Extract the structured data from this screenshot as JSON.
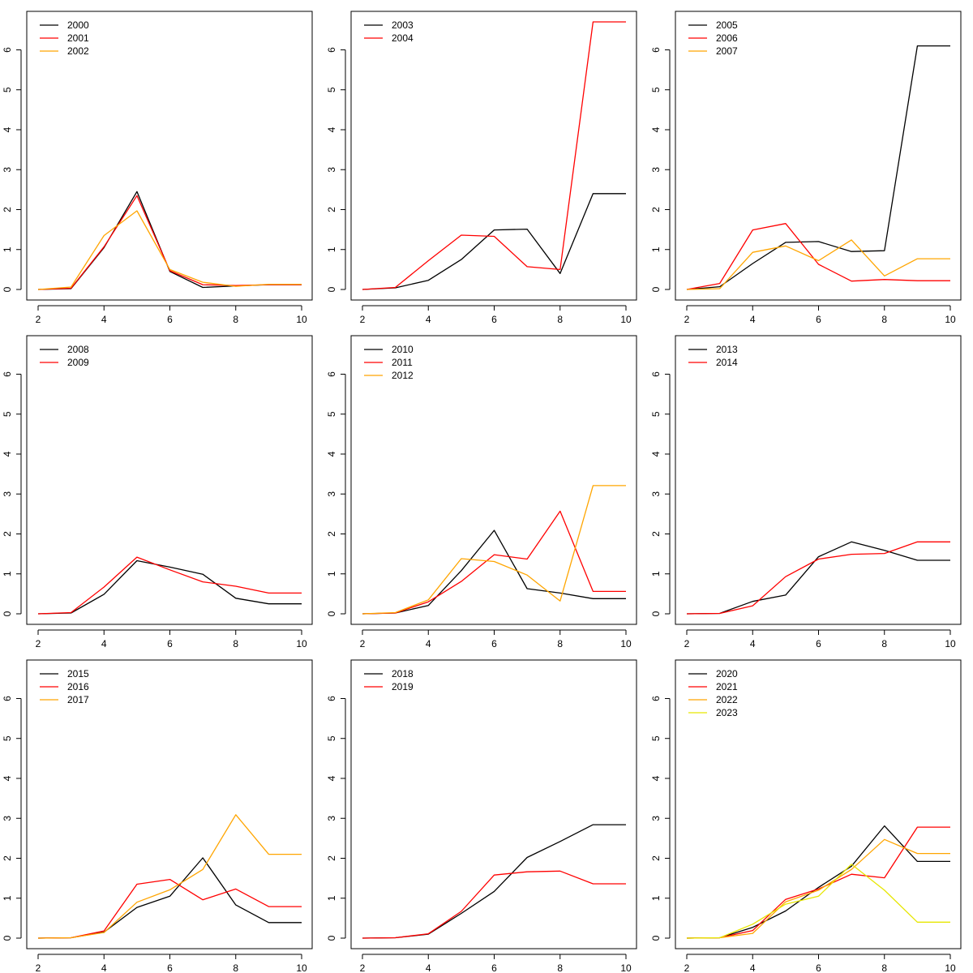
{
  "chart_data": [
    {
      "type": "line",
      "x": [
        2,
        3,
        4,
        5,
        6,
        7,
        8,
        9,
        10
      ],
      "xlim": [
        2,
        10
      ],
      "ylim": [
        0,
        6.7
      ],
      "xticks": [
        2,
        4,
        6,
        8,
        10
      ],
      "yticks": [
        0,
        1,
        2,
        3,
        4,
        5,
        6
      ],
      "legend_position": "top-left",
      "series": [
        {
          "name": "2000",
          "color": "#000000",
          "values": [
            0,
            0.02,
            1.05,
            2.45,
            0.45,
            0.05,
            0.09,
            0.12,
            0.12
          ]
        },
        {
          "name": "2001",
          "color": "#ff0000",
          "values": [
            0,
            0.03,
            1.07,
            2.35,
            0.47,
            0.12,
            0.1,
            0.12,
            0.12
          ]
        },
        {
          "name": "2002",
          "color": "#ffa500",
          "values": [
            0,
            0.06,
            1.35,
            1.97,
            0.5,
            0.18,
            0.08,
            0.13,
            0.13
          ]
        }
      ]
    },
    {
      "type": "line",
      "x": [
        2,
        3,
        4,
        5,
        6,
        7,
        8,
        9,
        10
      ],
      "xlim": [
        2,
        10
      ],
      "ylim": [
        0,
        6.7
      ],
      "xticks": [
        2,
        4,
        6,
        8,
        10
      ],
      "yticks": [
        0,
        1,
        2,
        3,
        4,
        5,
        6
      ],
      "legend_position": "top-left",
      "series": [
        {
          "name": "2003",
          "color": "#000000",
          "values": [
            0,
            0.04,
            0.23,
            0.75,
            1.49,
            1.51,
            0.4,
            2.4,
            2.4
          ]
        },
        {
          "name": "2004",
          "color": "#ff0000",
          "values": [
            0,
            0.05,
            0.72,
            1.36,
            1.33,
            0.57,
            0.5,
            6.7,
            6.7
          ]
        }
      ]
    },
    {
      "type": "line",
      "x": [
        2,
        3,
        4,
        5,
        6,
        7,
        8,
        9,
        10
      ],
      "xlim": [
        2,
        10
      ],
      "ylim": [
        0,
        6.7
      ],
      "xticks": [
        2,
        4,
        6,
        8,
        10
      ],
      "yticks": [
        0,
        1,
        2,
        3,
        4,
        5,
        6
      ],
      "legend_position": "top-left",
      "series": [
        {
          "name": "2005",
          "color": "#000000",
          "values": [
            0,
            0.07,
            0.65,
            1.18,
            1.2,
            0.95,
            0.97,
            6.1,
            6.1
          ]
        },
        {
          "name": "2006",
          "color": "#ff0000",
          "values": [
            0,
            0.15,
            1.49,
            1.65,
            0.63,
            0.21,
            0.25,
            0.22,
            0.22
          ]
        },
        {
          "name": "2007",
          "color": "#ffa500",
          "values": [
            0,
            0.02,
            0.93,
            1.09,
            0.72,
            1.24,
            0.34,
            0.77,
            0.77
          ]
        }
      ]
    },
    {
      "type": "line",
      "x": [
        2,
        3,
        4,
        5,
        6,
        7,
        8,
        9,
        10
      ],
      "xlim": [
        2,
        10
      ],
      "ylim": [
        0,
        6.7
      ],
      "xticks": [
        2,
        4,
        6,
        8,
        10
      ],
      "yticks": [
        0,
        1,
        2,
        3,
        4,
        5,
        6
      ],
      "legend_position": "top-left",
      "series": [
        {
          "name": "2008",
          "color": "#000000",
          "values": [
            0,
            0.02,
            0.49,
            1.33,
            1.17,
            0.99,
            0.39,
            0.25,
            0.25
          ]
        },
        {
          "name": "2009",
          "color": "#ff0000",
          "values": [
            0,
            0.03,
            0.67,
            1.42,
            1.1,
            0.8,
            0.69,
            0.52,
            0.52
          ]
        }
      ]
    },
    {
      "type": "line",
      "x": [
        2,
        3,
        4,
        5,
        6,
        7,
        8,
        9,
        10
      ],
      "xlim": [
        2,
        10
      ],
      "ylim": [
        0,
        6.7
      ],
      "xticks": [
        2,
        4,
        6,
        8,
        10
      ],
      "yticks": [
        0,
        1,
        2,
        3,
        4,
        5,
        6
      ],
      "legend_position": "top-left",
      "series": [
        {
          "name": "2010",
          "color": "#000000",
          "values": [
            0,
            0.02,
            0.21,
            1.08,
            2.09,
            0.63,
            0.52,
            0.38,
            0.38
          ]
        },
        {
          "name": "2011",
          "color": "#ff0000",
          "values": [
            0,
            0.02,
            0.3,
            0.81,
            1.48,
            1.37,
            2.57,
            0.56,
            0.56
          ]
        },
        {
          "name": "2012",
          "color": "#ffa500",
          "values": [
            0,
            0.03,
            0.35,
            1.38,
            1.31,
            0.97,
            0.32,
            3.21,
            3.21
          ]
        }
      ]
    },
    {
      "type": "line",
      "x": [
        2,
        3,
        4,
        5,
        6,
        7,
        8,
        9,
        10
      ],
      "xlim": [
        2,
        10
      ],
      "ylim": [
        0,
        6.7
      ],
      "xticks": [
        2,
        4,
        6,
        8,
        10
      ],
      "yticks": [
        0,
        1,
        2,
        3,
        4,
        5,
        6
      ],
      "legend_position": "top-left",
      "series": [
        {
          "name": "2013",
          "color": "#000000",
          "values": [
            0,
            0.01,
            0.31,
            0.47,
            1.43,
            1.8,
            1.59,
            1.34,
            1.34
          ]
        },
        {
          "name": "2014",
          "color": "#ff0000",
          "values": [
            0,
            0.01,
            0.2,
            0.93,
            1.37,
            1.49,
            1.51,
            1.8,
            1.8
          ]
        }
      ]
    },
    {
      "type": "line",
      "x": [
        2,
        3,
        4,
        5,
        6,
        7,
        8,
        9,
        10
      ],
      "xlim": [
        2,
        10
      ],
      "ylim": [
        0,
        6.7
      ],
      "xticks": [
        2,
        4,
        6,
        8,
        10
      ],
      "yticks": [
        0,
        1,
        2,
        3,
        4,
        5,
        6
      ],
      "legend_position": "top-left",
      "series": [
        {
          "name": "2015",
          "color": "#000000",
          "values": [
            0,
            0.01,
            0.15,
            0.77,
            1.05,
            2.01,
            0.83,
            0.39,
            0.39
          ]
        },
        {
          "name": "2016",
          "color": "#ff0000",
          "values": [
            0,
            0.01,
            0.18,
            1.35,
            1.47,
            0.96,
            1.23,
            0.79,
            0.79
          ]
        },
        {
          "name": "2017",
          "color": "#ffa500",
          "values": [
            0,
            0.01,
            0.14,
            0.9,
            1.21,
            1.72,
            3.09,
            2.1,
            2.1
          ]
        }
      ]
    },
    {
      "type": "line",
      "x": [
        2,
        3,
        4,
        5,
        6,
        7,
        8,
        9,
        10
      ],
      "xlim": [
        2,
        10
      ],
      "ylim": [
        0,
        6.7
      ],
      "xticks": [
        2,
        4,
        6,
        8,
        10
      ],
      "yticks": [
        0,
        1,
        2,
        3,
        4,
        5,
        6
      ],
      "legend_position": "top-left",
      "series": [
        {
          "name": "2018",
          "color": "#000000",
          "values": [
            0,
            0.01,
            0.1,
            0.62,
            1.17,
            2.02,
            2.42,
            2.84,
            2.84
          ]
        },
        {
          "name": "2019",
          "color": "#ff0000",
          "values": [
            0,
            0.01,
            0.11,
            0.67,
            1.58,
            1.66,
            1.68,
            1.36,
            1.36
          ]
        }
      ]
    },
    {
      "type": "line",
      "x": [
        2,
        3,
        4,
        5,
        6,
        7,
        8,
        9,
        10
      ],
      "xlim": [
        2,
        10
      ],
      "ylim": [
        0,
        6.7
      ],
      "xticks": [
        2,
        4,
        6,
        8,
        10
      ],
      "yticks": [
        0,
        1,
        2,
        3,
        4,
        5,
        6
      ],
      "legend_position": "top-left",
      "series": [
        {
          "name": "2020",
          "color": "#000000",
          "values": [
            0,
            0.01,
            0.27,
            0.68,
            1.27,
            1.8,
            2.81,
            1.92,
            1.92
          ]
        },
        {
          "name": "2021",
          "color": "#ff0000",
          "values": [
            0,
            0.01,
            0.19,
            0.97,
            1.23,
            1.6,
            1.51,
            2.78,
            2.78
          ]
        },
        {
          "name": "2022",
          "color": "#ffa500",
          "values": [
            0,
            0.01,
            0.12,
            0.91,
            1.2,
            1.72,
            2.47,
            2.12,
            2.12
          ]
        },
        {
          "name": "2023",
          "color": "#e6e600",
          "values": [
            0,
            0.01,
            0.35,
            0.85,
            1.05,
            1.85,
            1.2,
            0.4,
            0.4
          ]
        }
      ]
    }
  ]
}
